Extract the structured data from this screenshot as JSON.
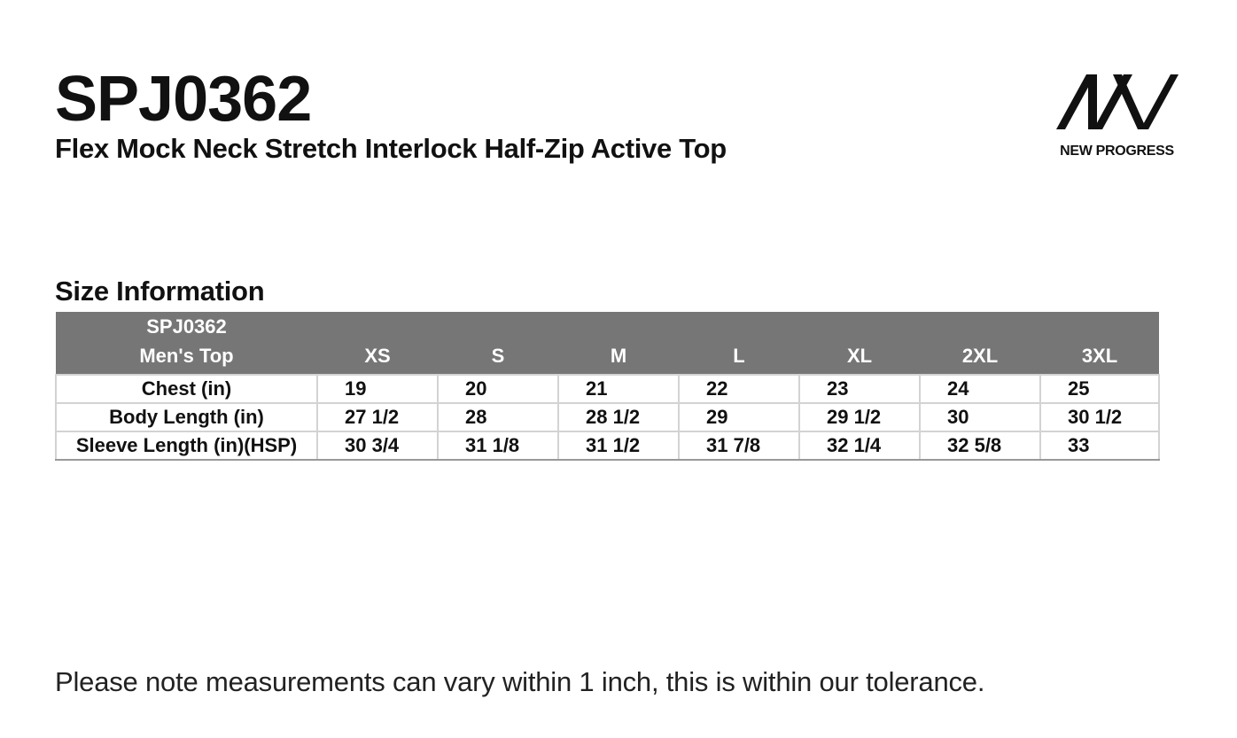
{
  "header": {
    "title": "SPJ0362",
    "subtitle": "Flex Mock Neck Stretch Interlock Half-Zip Active Top"
  },
  "brand": {
    "logo_icon": "aw-logo-icon",
    "name": "NEW PROGRESS"
  },
  "section": {
    "title": "Size Information"
  },
  "table": {
    "corner_line1": "SPJ0362",
    "corner_line2": "Men's Top",
    "columns": [
      "XS",
      "S",
      "M",
      "L",
      "XL",
      "2XL",
      "3XL"
    ],
    "rows": [
      {
        "label": "Chest (in)",
        "values": [
          "19",
          "20",
          "21",
          "22",
          "23",
          "24",
          "25"
        ]
      },
      {
        "label": "Body Length (in)",
        "values": [
          "27 1/2",
          "28",
          "28 1/2",
          "29",
          "29 1/2",
          "30",
          "30 1/2"
        ]
      },
      {
        "label": "Sleeve Length (in)(HSP)",
        "values": [
          "30 3/4",
          "31 1/8",
          "31 1/2",
          "31 7/8",
          "32 1/4",
          "32 5/8",
          "33"
        ]
      }
    ],
    "header_color": "#767676"
  },
  "footer": {
    "note": "Please note measurements can vary within 1 inch, this is within our tolerance."
  }
}
